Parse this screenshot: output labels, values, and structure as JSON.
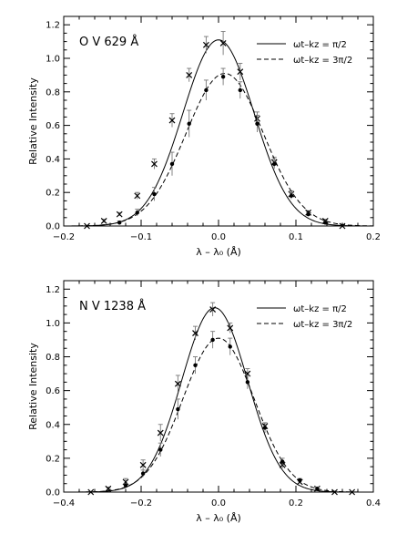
{
  "chart_data": [
    {
      "type": "line",
      "title": "O V 629 Å",
      "xlabel": "λ – λ₀ (Å)",
      "ylabel": "Relative Intensity",
      "xlim": [
        -0.2,
        0.2
      ],
      "ylim": [
        0.0,
        1.25
      ],
      "xticks": [
        -0.2,
        -0.1,
        0.0,
        0.1,
        0.2
      ],
      "xtick_labels": [
        "−0.2",
        "−0.1",
        "0.0",
        "0.1",
        "0.2"
      ],
      "yticks": [
        0.0,
        0.2,
        0.4,
        0.6,
        0.8,
        1.0,
        1.2
      ],
      "ytick_labels": [
        "0.0",
        "0.2",
        "0.4",
        "0.6",
        "0.8",
        "1.0",
        "1.2"
      ],
      "legend_position": "top-right",
      "series": [
        {
          "name": "ωt–kz = π/2",
          "line": "solid",
          "marker": "x",
          "fit": {
            "amplitude": 1.11,
            "center": 0.0,
            "sigma": 0.046
          },
          "points": [
            {
              "x": -0.17,
              "y": 0.0,
              "err": 0.0
            },
            {
              "x": -0.148,
              "y": 0.03,
              "err": 0.01
            },
            {
              "x": -0.128,
              "y": 0.07,
              "err": 0.01
            },
            {
              "x": -0.105,
              "y": 0.18,
              "err": 0.02
            },
            {
              "x": -0.083,
              "y": 0.37,
              "err": 0.03
            },
            {
              "x": -0.06,
              "y": 0.63,
              "err": 0.04
            },
            {
              "x": -0.038,
              "y": 0.9,
              "err": 0.04
            },
            {
              "x": -0.016,
              "y": 1.08,
              "err": 0.05
            },
            {
              "x": 0.006,
              "y": 1.09,
              "err": 0.07
            },
            {
              "x": 0.028,
              "y": 0.92,
              "err": 0.05
            },
            {
              "x": 0.05,
              "y": 0.64,
              "err": 0.04
            },
            {
              "x": 0.072,
              "y": 0.38,
              "err": 0.03
            },
            {
              "x": 0.094,
              "y": 0.19,
              "err": 0.02
            },
            {
              "x": 0.116,
              "y": 0.08,
              "err": 0.01
            },
            {
              "x": 0.138,
              "y": 0.03,
              "err": 0.01
            },
            {
              "x": 0.16,
              "y": 0.0,
              "err": 0.0
            }
          ]
        },
        {
          "name": "ωt–kz = 3π/2",
          "line": "dashed",
          "marker": "dot",
          "fit": {
            "amplitude": 0.91,
            "center": 0.008,
            "sigma": 0.05
          },
          "points": [
            {
              "x": -0.128,
              "y": 0.02,
              "err": 0.01
            },
            {
              "x": -0.105,
              "y": 0.08,
              "err": 0.02
            },
            {
              "x": -0.083,
              "y": 0.19,
              "err": 0.04
            },
            {
              "x": -0.06,
              "y": 0.37,
              "err": 0.07
            },
            {
              "x": -0.038,
              "y": 0.61,
              "err": 0.08
            },
            {
              "x": -0.016,
              "y": 0.81,
              "err": 0.06
            },
            {
              "x": 0.006,
              "y": 0.89,
              "err": 0.05
            },
            {
              "x": 0.028,
              "y": 0.81,
              "err": 0.05
            },
            {
              "x": 0.05,
              "y": 0.61,
              "err": 0.05
            },
            {
              "x": 0.072,
              "y": 0.37,
              "err": 0.03
            },
            {
              "x": 0.094,
              "y": 0.18,
              "err": 0.02
            },
            {
              "x": 0.116,
              "y": 0.07,
              "err": 0.01
            },
            {
              "x": 0.138,
              "y": 0.02,
              "err": 0.01
            }
          ]
        }
      ]
    },
    {
      "type": "line",
      "title": "N V 1238 Å",
      "xlabel": "λ – λ₀ (Å)",
      "ylabel": "Relative Intensity",
      "xlim": [
        -0.4,
        0.4
      ],
      "ylim": [
        0.0,
        1.25
      ],
      "xticks": [
        -0.4,
        -0.2,
        0.0,
        0.2,
        0.4
      ],
      "xtick_labels": [
        "−0.4",
        "−0.2",
        "0.0",
        "0.2",
        "0.4"
      ],
      "yticks": [
        0.0,
        0.2,
        0.4,
        0.6,
        0.8,
        1.0,
        1.2
      ],
      "ytick_labels": [
        "0.0",
        "0.2",
        "0.4",
        "0.6",
        "0.8",
        "1.0",
        "1.2"
      ],
      "legend_position": "top-right",
      "series": [
        {
          "name": "ωt–kz = π/2",
          "line": "solid",
          "marker": "x",
          "fit": {
            "amplitude": 1.09,
            "center": -0.01,
            "sigma": 0.085
          },
          "points": [
            {
              "x": -0.33,
              "y": 0.0,
              "err": 0.0
            },
            {
              "x": -0.285,
              "y": 0.02,
              "err": 0.01
            },
            {
              "x": -0.24,
              "y": 0.06,
              "err": 0.02
            },
            {
              "x": -0.195,
              "y": 0.16,
              "err": 0.03
            },
            {
              "x": -0.15,
              "y": 0.35,
              "err": 0.05
            },
            {
              "x": -0.105,
              "y": 0.64,
              "err": 0.05
            },
            {
              "x": -0.06,
              "y": 0.94,
              "err": 0.04
            },
            {
              "x": -0.015,
              "y": 1.08,
              "err": 0.04
            },
            {
              "x": 0.03,
              "y": 0.97,
              "err": 0.03
            },
            {
              "x": 0.075,
              "y": 0.7,
              "err": 0.03
            },
            {
              "x": 0.12,
              "y": 0.39,
              "err": 0.02
            },
            {
              "x": 0.165,
              "y": 0.16,
              "err": 0.02
            },
            {
              "x": 0.21,
              "y": 0.06,
              "err": 0.01
            },
            {
              "x": 0.255,
              "y": 0.02,
              "err": 0.01
            },
            {
              "x": 0.3,
              "y": 0.0,
              "err": 0.0
            },
            {
              "x": 0.345,
              "y": 0.0,
              "err": 0.0
            }
          ]
        },
        {
          "name": "ωt–kz = 3π/2",
          "line": "dashed",
          "marker": "dot",
          "fit": {
            "amplitude": 0.91,
            "center": 0.0,
            "sigma": 0.092
          },
          "points": [
            {
              "x": -0.24,
              "y": 0.04,
              "err": 0.01
            },
            {
              "x": -0.195,
              "y": 0.11,
              "err": 0.02
            },
            {
              "x": -0.15,
              "y": 0.25,
              "err": 0.04
            },
            {
              "x": -0.105,
              "y": 0.49,
              "err": 0.06
            },
            {
              "x": -0.06,
              "y": 0.75,
              "err": 0.05
            },
            {
              "x": -0.015,
              "y": 0.9,
              "err": 0.05
            },
            {
              "x": 0.03,
              "y": 0.86,
              "err": 0.05
            },
            {
              "x": 0.075,
              "y": 0.65,
              "err": 0.04
            },
            {
              "x": 0.12,
              "y": 0.38,
              "err": 0.03
            },
            {
              "x": 0.165,
              "y": 0.18,
              "err": 0.02
            },
            {
              "x": 0.21,
              "y": 0.07,
              "err": 0.01
            },
            {
              "x": 0.255,
              "y": 0.02,
              "err": 0.01
            }
          ]
        }
      ]
    }
  ]
}
